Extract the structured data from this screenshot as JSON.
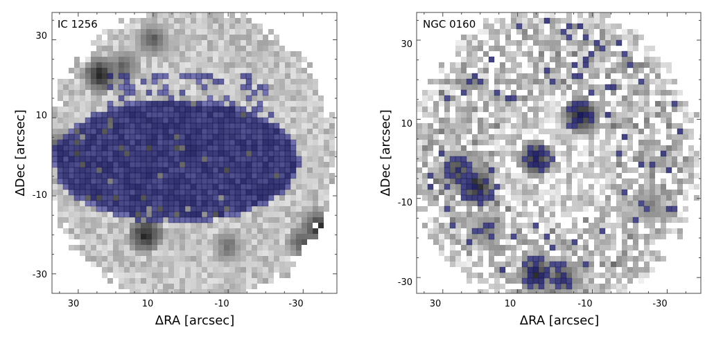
{
  "chart_data": [
    {
      "type": "heatmap",
      "title": "IC 1256",
      "xlabel": "ΔRA [arcsec]",
      "ylabel": "ΔDec [arcsec]",
      "xlim": [
        37,
        -39
      ],
      "ylim": [
        -35,
        37
      ],
      "xticks": [
        30,
        10,
        -10,
        -30
      ],
      "xtick_labels": [
        "30",
        "10",
        "-10",
        "-30"
      ],
      "yticks": [
        30,
        10,
        -10,
        -30
      ],
      "ytick_labels": [
        "30",
        "10",
        "-10",
        "-30"
      ],
      "grid": false,
      "colormap": "greyscale",
      "overlay_color": "#1a1a8c",
      "overlay_region": "large central blue-marked region with dark galaxy core",
      "dark_spots": [
        {
          "x": 24,
          "y": 21,
          "v": 0.95
        },
        {
          "x": 18,
          "y": 23,
          "v": 0.7
        },
        {
          "x": 0,
          "y": 2,
          "v": 0.85
        },
        {
          "x": 12,
          "y": -20,
          "v": 0.95
        },
        {
          "x": 10,
          "y": 30,
          "v": 0.7
        },
        {
          "x": -34,
          "y": -18,
          "v": 0.9
        },
        {
          "x": -30,
          "y": -22,
          "v": 0.75
        },
        {
          "x": -10,
          "y": -23,
          "v": 0.6
        },
        {
          "x": 36,
          "y": 3,
          "v": 0.6
        }
      ]
    },
    {
      "type": "heatmap",
      "title": "NGC 0160",
      "xlabel": "ΔRA [arcsec]",
      "ylabel": "ΔDec [arcsec]",
      "xlim": [
        37,
        -39
      ],
      "ylim": [
        -34,
        37
      ],
      "xticks": [
        30,
        10,
        -10,
        -30
      ],
      "xtick_labels": [
        "30",
        "10",
        "-10",
        "-30"
      ],
      "yticks": [
        30,
        10,
        -10,
        -30
      ],
      "ytick_labels": [
        "30",
        "10",
        "-10",
        "-30"
      ],
      "grid": false,
      "colormap": "greyscale",
      "overlay_color": "#1a1a8c",
      "overlay_region": "scattered blue-marked pixels along the ring arms",
      "dark_spots": [
        {
          "x": 21,
          "y": -7,
          "v": 0.95
        },
        {
          "x": 26,
          "y": -3,
          "v": 0.8
        },
        {
          "x": 5,
          "y": 0,
          "v": 0.9
        },
        {
          "x": -7,
          "y": 11,
          "v": 0.95
        },
        {
          "x": 5,
          "y": -29,
          "v": 0.9
        },
        {
          "x": -2,
          "y": -30,
          "v": 0.75
        },
        {
          "x": 18,
          "y": -18,
          "v": 0.6
        },
        {
          "x": -25,
          "y": -12,
          "v": 0.55
        }
      ]
    }
  ]
}
